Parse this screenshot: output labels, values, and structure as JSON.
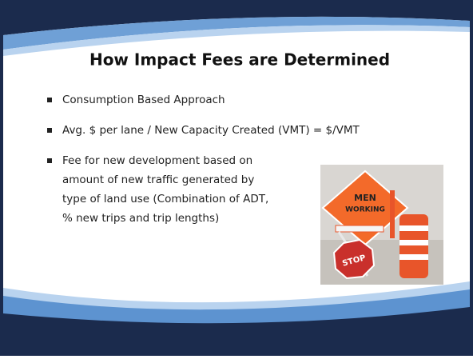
{
  "header": {
    "title": "How Impact Fees are Determined"
  },
  "bullets": [
    {
      "lines": [
        "Consumption Based Approach"
      ]
    },
    {
      "lines": [
        "Avg. $ per lane / New Capacity Created (VMT) = $/VMT"
      ]
    },
    {
      "lines": [
        "Fee for new development based on",
        "amount of new traffic generated by",
        "type of land use (Combination of ADT,",
        "% new trips and trip lengths)"
      ]
    }
  ],
  "image": {
    "texts": [
      "MEN",
      "WORKING",
      "STOP"
    ]
  }
}
